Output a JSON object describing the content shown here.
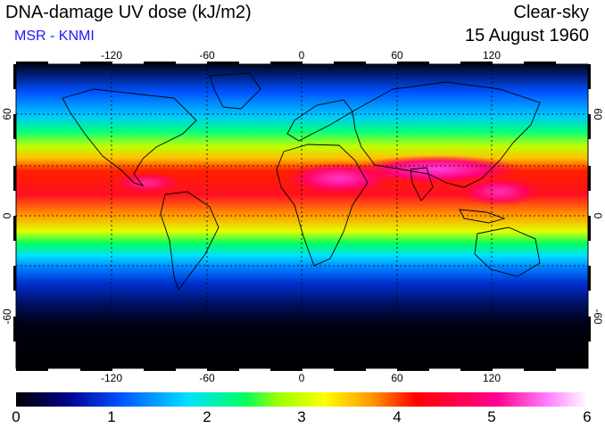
{
  "header": {
    "title": "DNA-damage UV dose (kJ/m2)",
    "source": "MSR - KNMI",
    "condition": "Clear-sky",
    "date": "15 August 1960"
  },
  "map": {
    "projection": "equirectangular",
    "lon_range": [
      -180,
      180
    ],
    "lat_range": [
      -90,
      90
    ],
    "grid": "dashed",
    "lon_ticks": [
      "-120",
      "-60",
      "0",
      "60",
      "120"
    ],
    "lat_ticks": [
      "60",
      "0",
      "-60"
    ]
  },
  "colorbar": {
    "min": 0,
    "max": 6,
    "labels": [
      "0",
      "1",
      "2",
      "3",
      "4",
      "5",
      "6"
    ],
    "stops": [
      "#000000",
      "#00008b",
      "#0050ff",
      "#00e0ff",
      "#00ff60",
      "#a0ff00",
      "#ffff00",
      "#ff9900",
      "#ff0000",
      "#ff0090",
      "#ff80ff",
      "#ffffff"
    ]
  }
}
